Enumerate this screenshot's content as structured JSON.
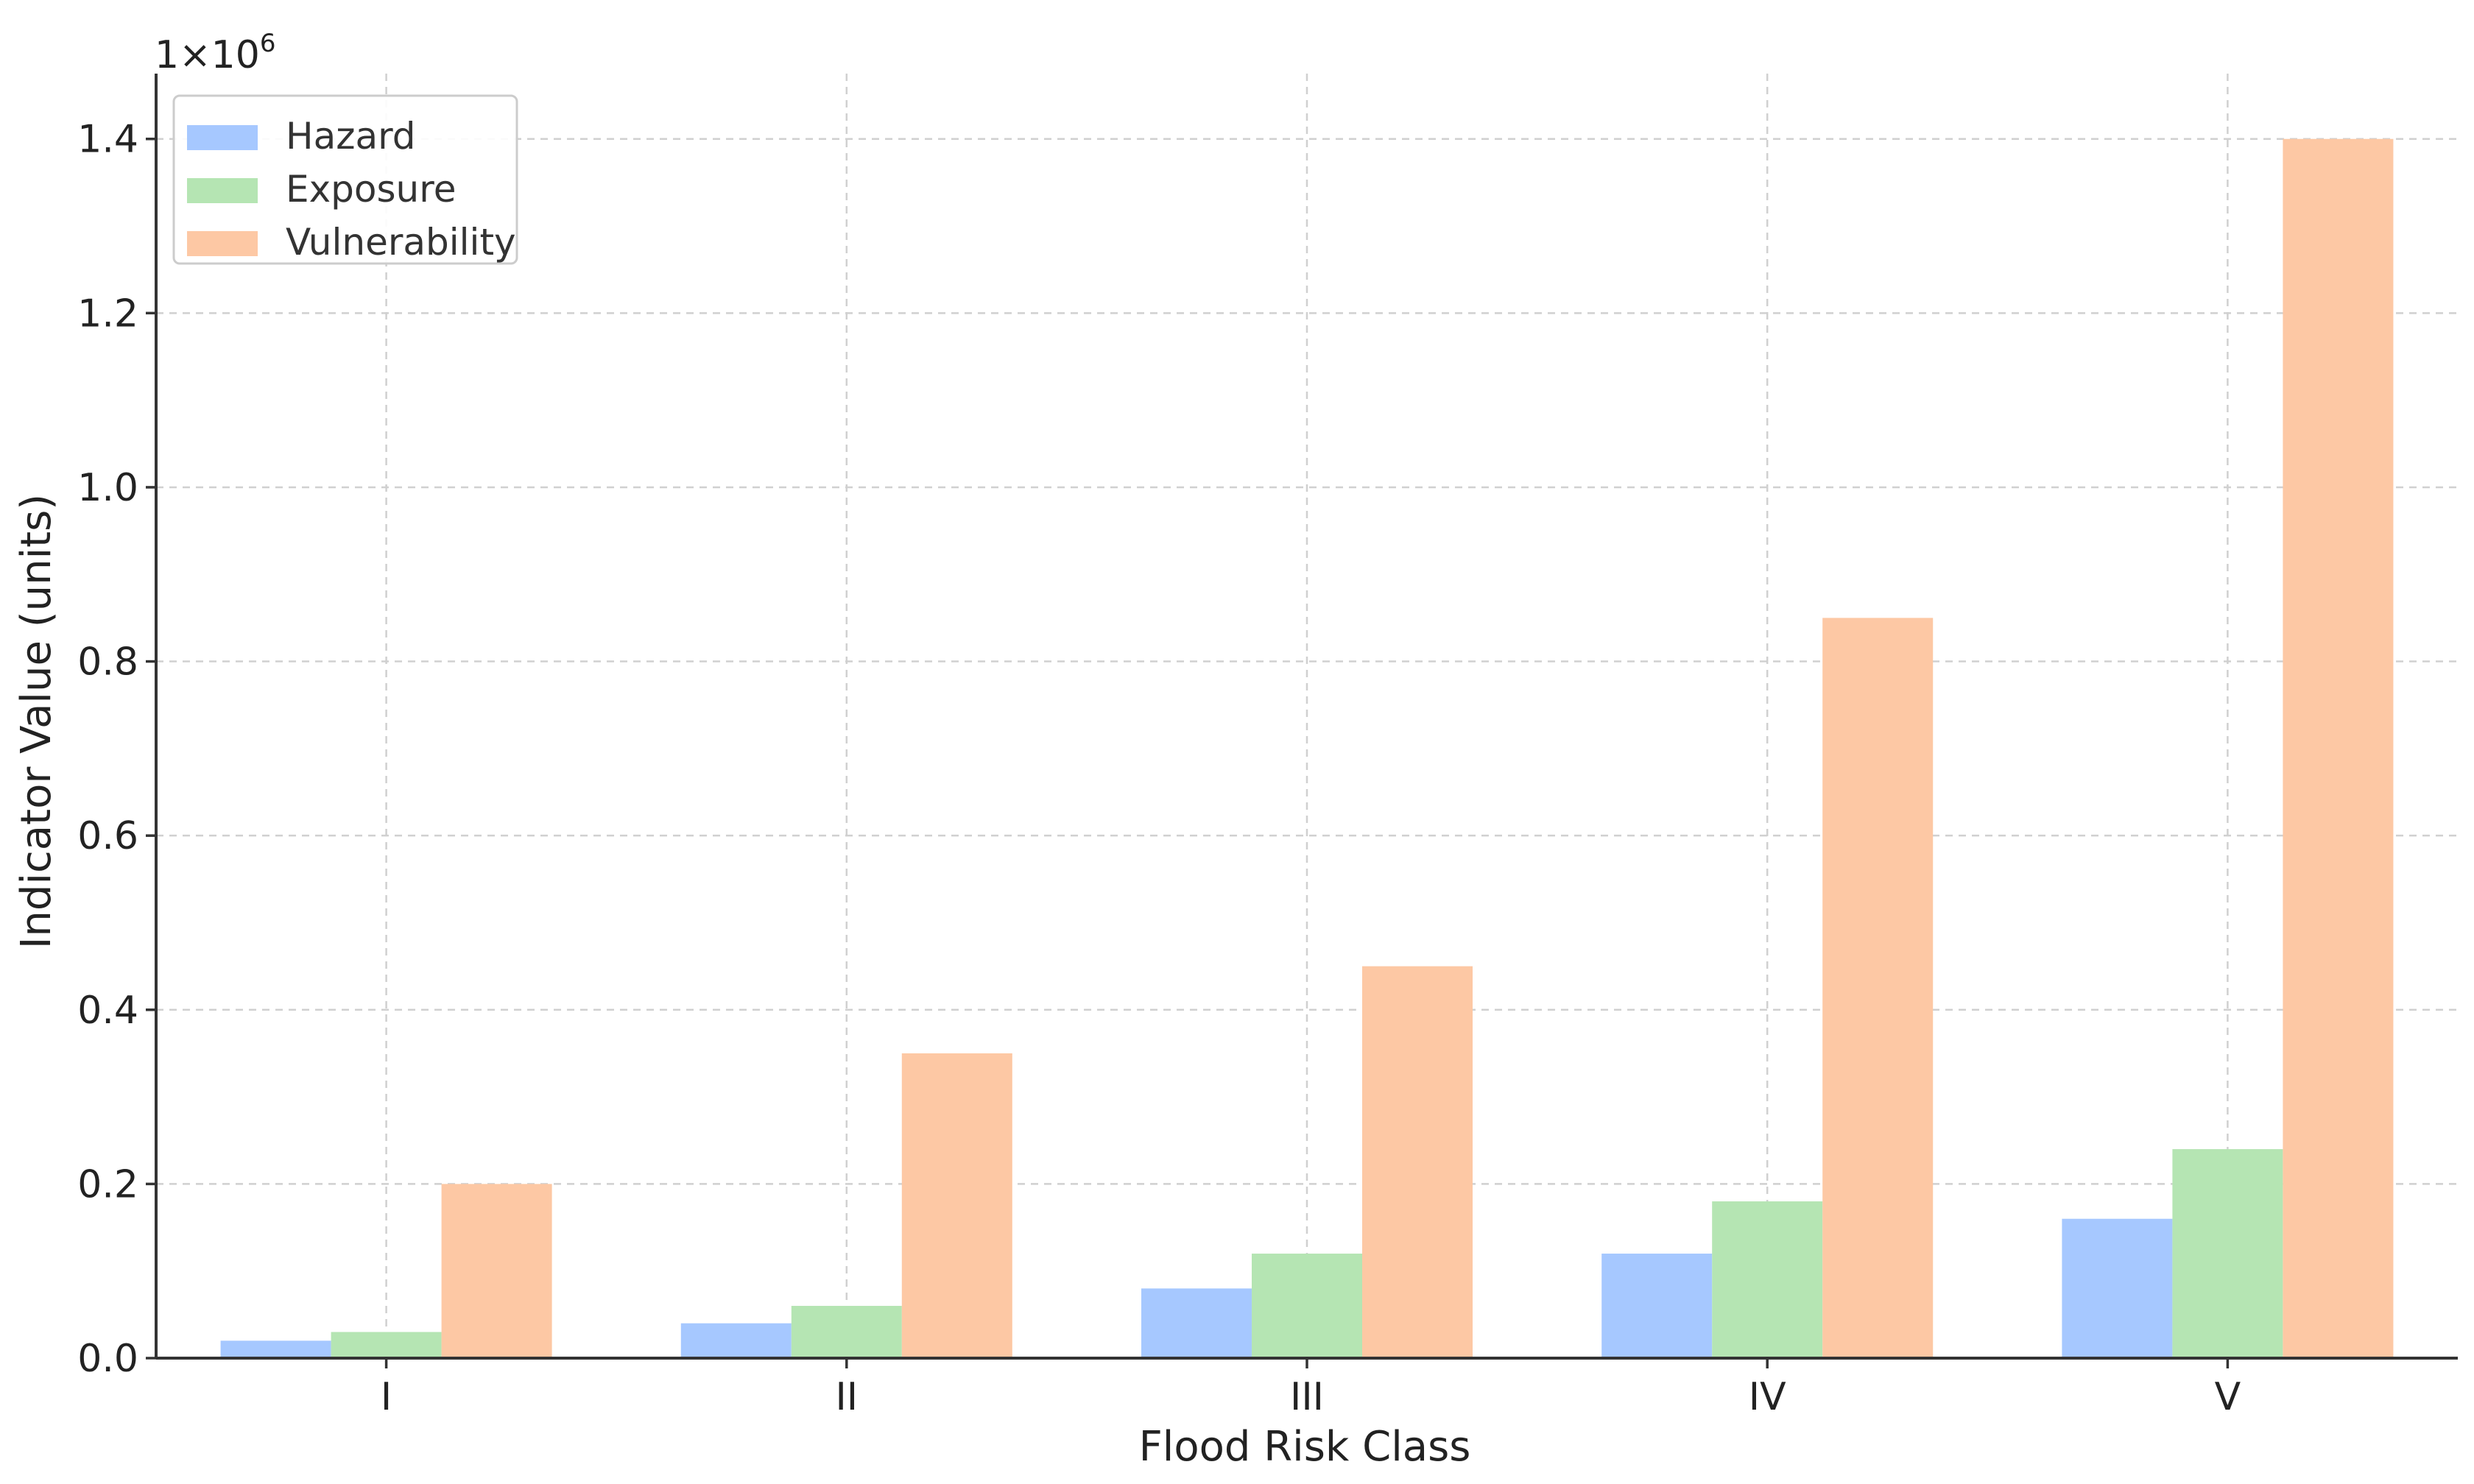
{
  "chart_data": {
    "type": "bar",
    "title": "",
    "xlabel": "Flood Risk Class",
    "ylabel": "Indicator Value (units)",
    "categories": [
      "I",
      "II",
      "III",
      "IV",
      "V"
    ],
    "series": [
      {
        "name": "Hazard",
        "color": "#a6c8ff",
        "values": [
          20000,
          40000,
          80000,
          120000,
          160000
        ]
      },
      {
        "name": "Exposure",
        "color": "#b5e5b3",
        "values": [
          30000,
          60000,
          120000,
          180000,
          240000
        ]
      },
      {
        "name": "Vulnerability",
        "color": "#fdc8a4",
        "values": [
          200000,
          350000,
          450000,
          850000,
          1400000
        ]
      }
    ],
    "ylim": [
      0,
      1475000
    ],
    "yticks": [
      0,
      200000,
      400000,
      600000,
      800000,
      1000000,
      1200000,
      1400000
    ],
    "ytick_labels": [
      "0.0",
      "0.2",
      "0.4",
      "0.6",
      "0.8",
      "1.0",
      "1.2",
      "1.4"
    ],
    "y_multiplier": {
      "base": "1×10",
      "exponent": "6"
    },
    "grid": true,
    "legend_position": "top-left"
  }
}
